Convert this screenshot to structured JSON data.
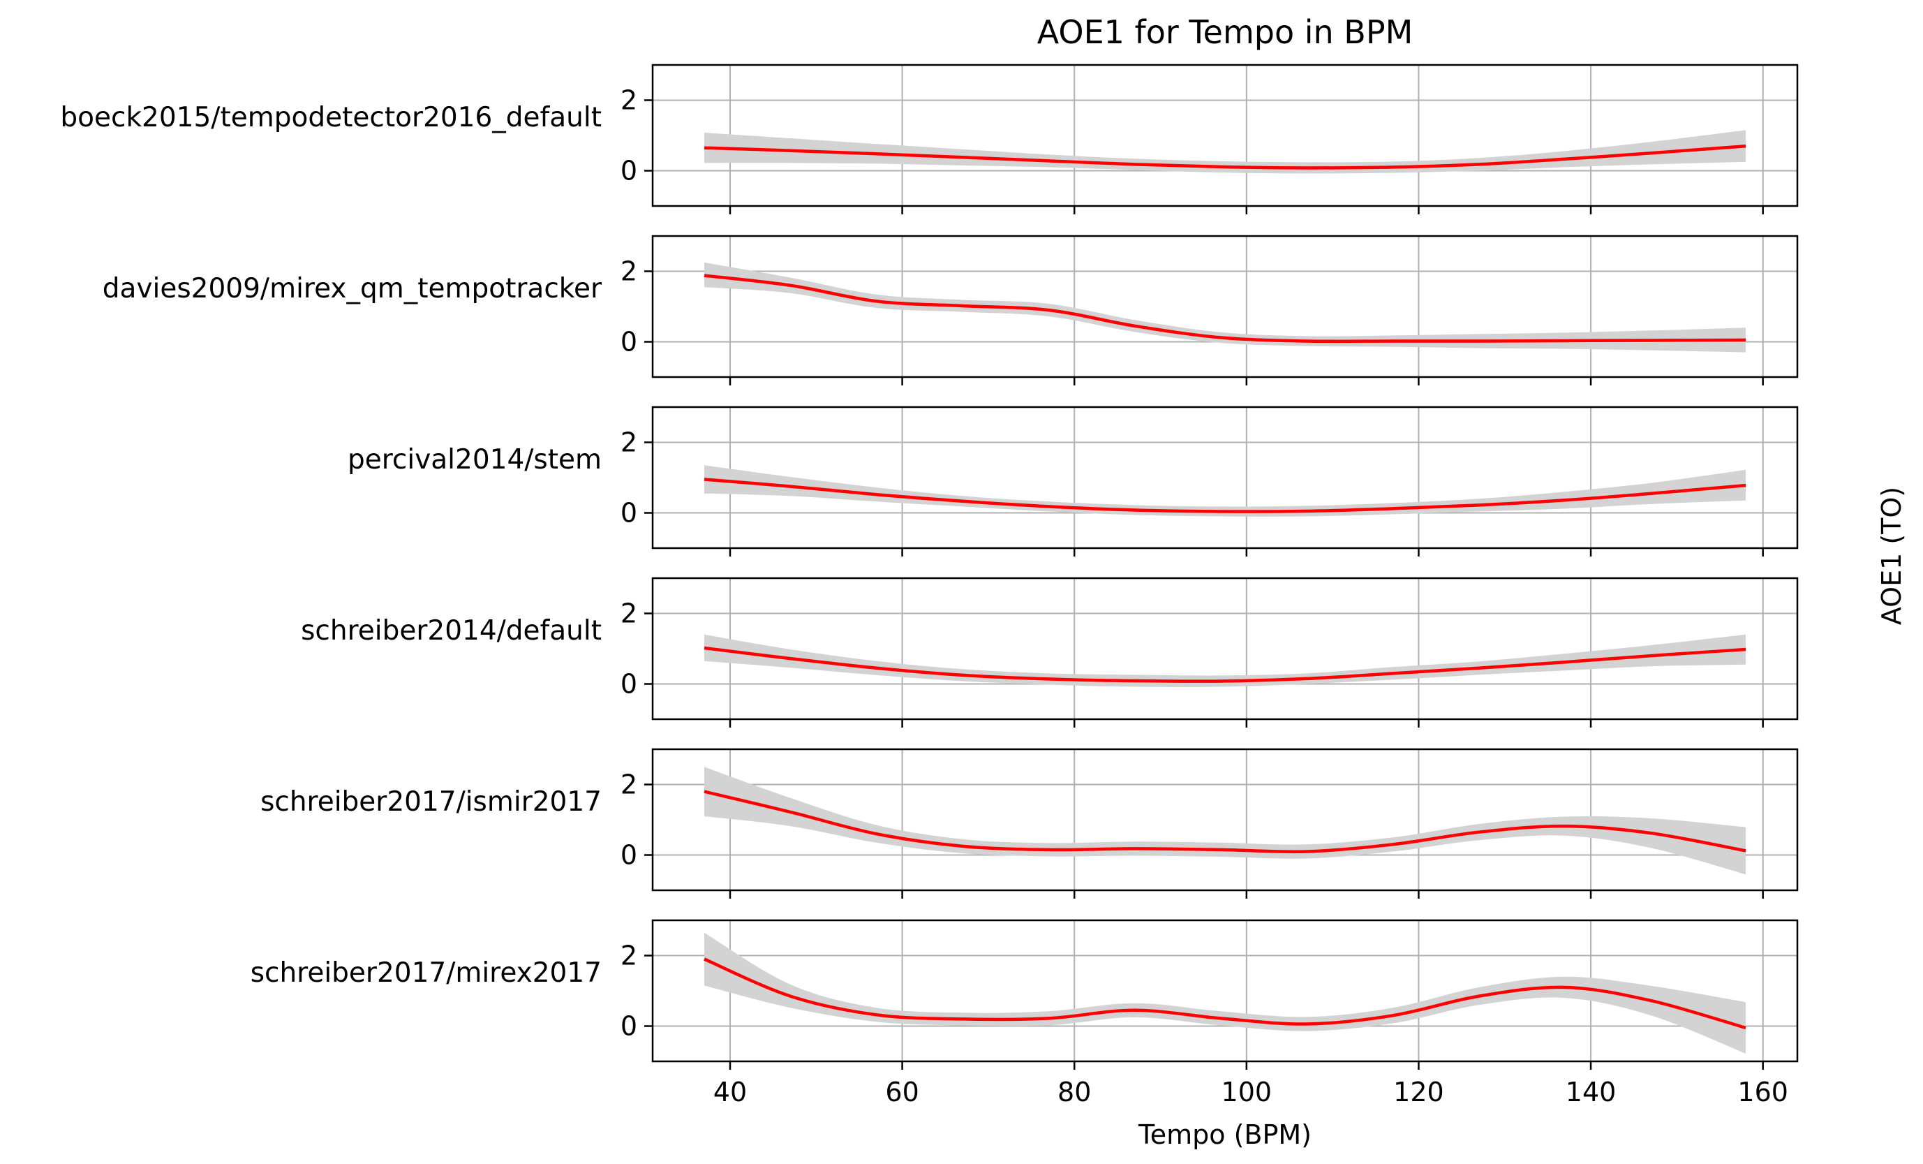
{
  "chart_data": {
    "type": "line",
    "title": "AOE1 for Tempo in BPM",
    "xlabel": "Tempo (BPM)",
    "ylabel": "AOE1 (TO)",
    "xlim": [
      31,
      164
    ],
    "ylim": [
      -1,
      3
    ],
    "xticks": [
      40,
      60,
      80,
      100,
      120,
      140,
      160
    ],
    "yticks": [
      0,
      2
    ],
    "grid": true,
    "line_color": "#ff0000",
    "band_color": "#d3d3d3",
    "x": [
      37,
      47,
      57,
      67,
      77,
      87,
      97,
      107,
      117,
      127,
      137,
      147,
      158
    ],
    "panels": [
      {
        "name": "boeck2015/tempodetector2016_default",
        "mean": [
          0.65,
          0.57,
          0.48,
          0.38,
          0.28,
          0.18,
          0.11,
          0.08,
          0.1,
          0.18,
          0.33,
          0.5,
          0.7
        ],
        "lower": [
          0.22,
          0.22,
          0.2,
          0.15,
          0.1,
          0.02,
          -0.05,
          -0.08,
          -0.06,
          0.0,
          0.1,
          0.18,
          0.25
        ],
        "upper": [
          1.08,
          0.92,
          0.76,
          0.61,
          0.46,
          0.34,
          0.27,
          0.24,
          0.26,
          0.36,
          0.56,
          0.82,
          1.15
        ]
      },
      {
        "name": "davies2009/mirex_qm_tempotracker",
        "mean": [
          1.88,
          1.6,
          1.15,
          1.02,
          0.9,
          0.45,
          0.12,
          0.02,
          0.02,
          0.02,
          0.03,
          0.04,
          0.05
        ],
        "lower": [
          1.55,
          1.38,
          0.96,
          0.85,
          0.72,
          0.28,
          -0.03,
          -0.12,
          -0.14,
          -0.18,
          -0.2,
          -0.24,
          -0.3
        ],
        "upper": [
          2.25,
          1.82,
          1.34,
          1.19,
          1.08,
          0.62,
          0.27,
          0.16,
          0.18,
          0.22,
          0.26,
          0.32,
          0.4
        ]
      },
      {
        "name": "percival2014/stem",
        "mean": [
          0.95,
          0.75,
          0.52,
          0.33,
          0.18,
          0.08,
          0.04,
          0.05,
          0.12,
          0.22,
          0.36,
          0.55,
          0.78
        ],
        "lower": [
          0.55,
          0.48,
          0.32,
          0.18,
          0.04,
          -0.06,
          -0.1,
          -0.1,
          -0.04,
          0.04,
          0.12,
          0.25,
          0.35
        ],
        "upper": [
          1.35,
          1.02,
          0.72,
          0.48,
          0.32,
          0.22,
          0.18,
          0.2,
          0.28,
          0.4,
          0.6,
          0.85,
          1.22
        ]
      },
      {
        "name": "schreiber2014/default",
        "mean": [
          1.02,
          0.72,
          0.45,
          0.25,
          0.14,
          0.09,
          0.08,
          0.15,
          0.3,
          0.45,
          0.62,
          0.8,
          0.98
        ],
        "lower": [
          0.65,
          0.46,
          0.25,
          0.08,
          -0.02,
          -0.08,
          -0.08,
          0.0,
          0.12,
          0.26,
          0.38,
          0.5,
          0.55
        ],
        "upper": [
          1.4,
          0.98,
          0.65,
          0.42,
          0.3,
          0.26,
          0.24,
          0.3,
          0.48,
          0.64,
          0.86,
          1.1,
          1.4
        ]
      },
      {
        "name": "schreiber2017/ismir2017",
        "mean": [
          1.8,
          1.22,
          0.6,
          0.25,
          0.15,
          0.18,
          0.15,
          0.1,
          0.3,
          0.65,
          0.82,
          0.62,
          0.12
        ],
        "lower": [
          1.1,
          0.82,
          0.35,
          0.05,
          -0.04,
          -0.02,
          -0.05,
          -0.1,
          0.1,
          0.42,
          0.55,
          0.2,
          -0.55
        ],
        "upper": [
          2.5,
          1.62,
          0.85,
          0.45,
          0.34,
          0.38,
          0.35,
          0.3,
          0.5,
          0.88,
          1.09,
          1.04,
          0.79
        ]
      },
      {
        "name": "schreiber2017/mirex2017",
        "mean": [
          1.9,
          0.85,
          0.32,
          0.2,
          0.22,
          0.45,
          0.22,
          0.06,
          0.3,
          0.85,
          1.1,
          0.72,
          -0.05
        ],
        "lower": [
          1.15,
          0.52,
          0.12,
          0.02,
          0.02,
          0.25,
          0.02,
          -0.14,
          0.08,
          0.6,
          0.8,
          0.3,
          -0.78
        ],
        "upper": [
          2.65,
          1.18,
          0.52,
          0.38,
          0.42,
          0.65,
          0.42,
          0.26,
          0.52,
          1.1,
          1.4,
          1.14,
          0.68
        ]
      }
    ]
  }
}
